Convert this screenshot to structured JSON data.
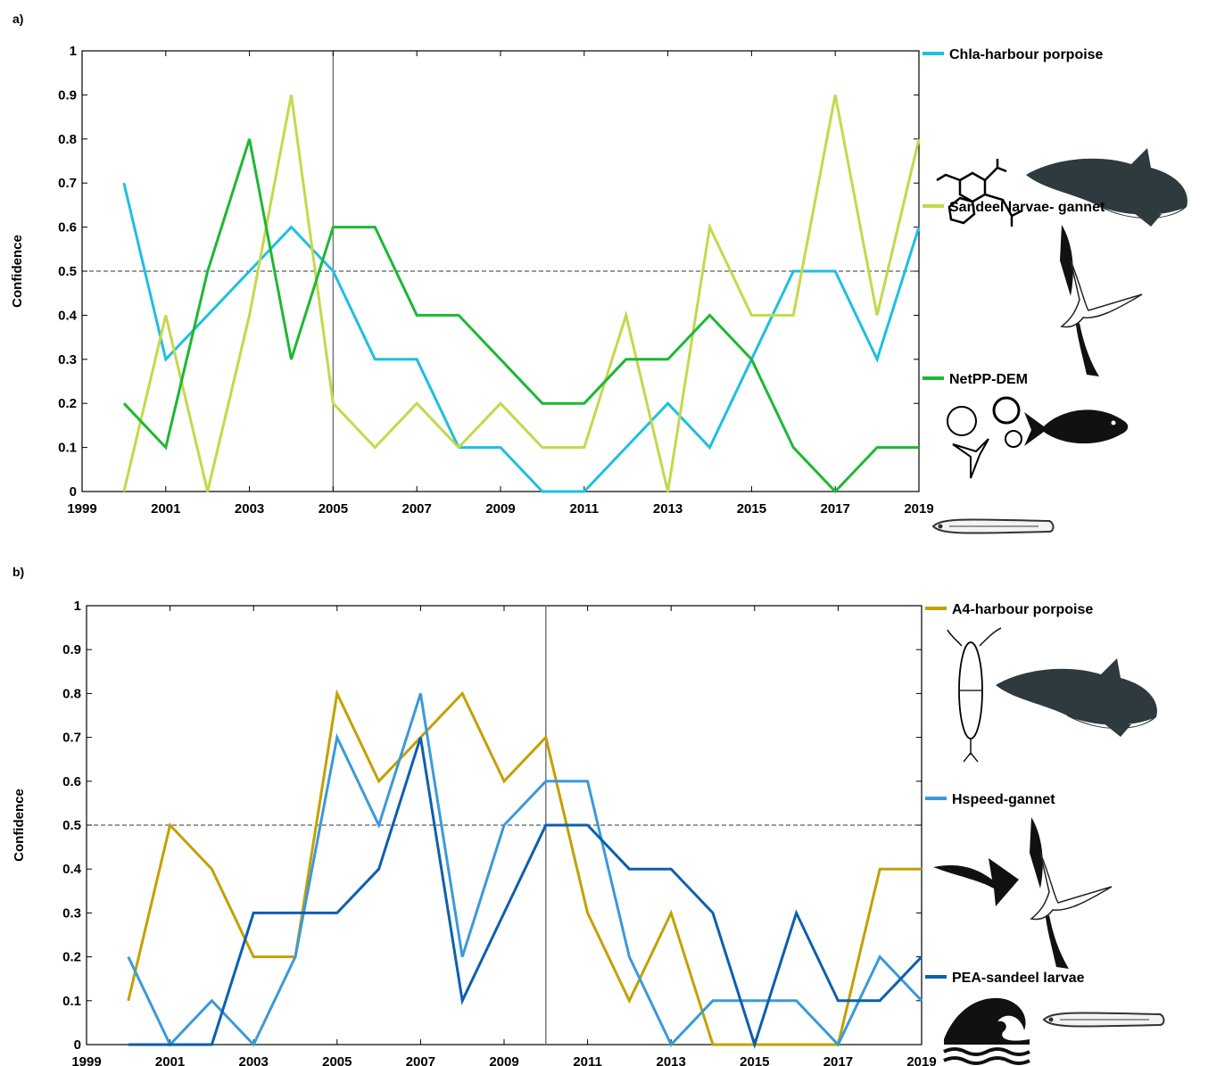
{
  "chart_data": [
    {
      "panel_label": "a)",
      "type": "line",
      "ylabel": "Confidence",
      "xlim": [
        1999,
        2019
      ],
      "ylim": [
        0,
        1
      ],
      "x_ticks": [
        "1999",
        "2001",
        "2003",
        "2005",
        "2007",
        "2009",
        "2011",
        "2013",
        "2015",
        "2017",
        "2019"
      ],
      "y_ticks": [
        "0",
        "0.1",
        "0.2",
        "0.3",
        "0.4",
        "0.5",
        "0.6",
        "0.7",
        "0.8",
        "0.9",
        "1"
      ],
      "reference_hline": 0.5,
      "breakpoint_year": 2005,
      "grid": false,
      "legend_position": "right",
      "x": [
        2000,
        2001,
        2002,
        2003,
        2004,
        2005,
        2006,
        2007,
        2008,
        2009,
        2010,
        2011,
        2012,
        2013,
        2014,
        2015,
        2016,
        2017,
        2018,
        2019
      ],
      "series": [
        {
          "name": "Chla-harbour porpoise",
          "color": "#1ebfe0",
          "values": [
            0.7,
            0.3,
            0.4,
            0.5,
            0.6,
            0.5,
            0.3,
            0.3,
            0.1,
            0.1,
            0.0,
            0.0,
            0.1,
            0.2,
            0.1,
            0.3,
            0.5,
            0.5,
            0.3,
            0.6
          ]
        },
        {
          "name": "Sandeel larvae- gannet",
          "color": "#c5d84a",
          "values": [
            0.0,
            0.4,
            0.0,
            0.4,
            0.9,
            0.2,
            0.1,
            0.2,
            0.1,
            0.2,
            0.1,
            0.1,
            0.4,
            0.0,
            0.6,
            0.4,
            0.4,
            0.9,
            0.4,
            0.8
          ]
        },
        {
          "name": "NetPP-DEM",
          "color": "#1db832",
          "values": [
            0.2,
            0.1,
            0.5,
            0.8,
            0.3,
            0.6,
            0.6,
            0.4,
            0.4,
            0.3,
            0.2,
            0.2,
            0.3,
            0.3,
            0.4,
            0.3,
            0.1,
            0.0,
            0.1,
            0.1
          ]
        }
      ],
      "legend_icons": [
        [
          "chlorophyll-molecule-icon",
          "harbour-porpoise-icon"
        ],
        [
          "sandeel-larva-icon",
          "gannet-icon"
        ],
        [
          "plankton-cells-icon",
          "demersal-fish-icon"
        ]
      ]
    },
    {
      "panel_label": "b)",
      "type": "line",
      "ylabel": "Confidence",
      "xlim": [
        1999,
        2019
      ],
      "ylim": [
        0,
        1
      ],
      "x_ticks": [
        "1999",
        "2001",
        "2003",
        "2005",
        "2007",
        "2009",
        "2011",
        "2013",
        "2015",
        "2017",
        "2019"
      ],
      "y_ticks": [
        "0",
        "0.1",
        "0.2",
        "0.3",
        "0.4",
        "0.5",
        "0.6",
        "0.7",
        "0.8",
        "0.9",
        "1"
      ],
      "reference_hline": 0.5,
      "breakpoint_year": 2010,
      "grid": false,
      "legend_position": "right",
      "x": [
        2000,
        2001,
        2002,
        2003,
        2004,
        2005,
        2006,
        2007,
        2008,
        2009,
        2010,
        2011,
        2012,
        2013,
        2014,
        2015,
        2016,
        2017,
        2018,
        2019
      ],
      "series": [
        {
          "name": "A4-harbour porpoise",
          "color": "#c4a000",
          "values": [
            0.1,
            0.5,
            0.4,
            0.2,
            0.2,
            0.8,
            0.6,
            0.7,
            0.8,
            0.6,
            0.7,
            0.3,
            0.1,
            0.3,
            0.0,
            0.0,
            0.0,
            0.0,
            0.4,
            0.4
          ]
        },
        {
          "name": "Hspeed-gannet",
          "color": "#3a9ad9",
          "values": [
            0.2,
            0.0,
            0.1,
            0.0,
            0.2,
            0.7,
            0.5,
            0.8,
            0.2,
            0.5,
            0.6,
            0.6,
            0.2,
            0.0,
            0.1,
            0.1,
            0.1,
            0.0,
            0.2,
            0.1
          ]
        },
        {
          "name": "PEA-sandeel larvae",
          "color": "#0d5fb0",
          "values": [
            0.0,
            0.0,
            0.0,
            0.3,
            0.3,
            0.3,
            0.4,
            0.7,
            0.1,
            0.3,
            0.5,
            0.5,
            0.4,
            0.4,
            0.3,
            0.0,
            0.3,
            0.1,
            0.1,
            0.2
          ]
        }
      ],
      "legend_icons": [
        [
          "copepod-icon",
          "harbour-porpoise-icon"
        ],
        [
          "wind-arrow-icon",
          "gannet-icon"
        ],
        [
          "ocean-wave-icon",
          "sandeel-larva-icon"
        ]
      ]
    }
  ]
}
